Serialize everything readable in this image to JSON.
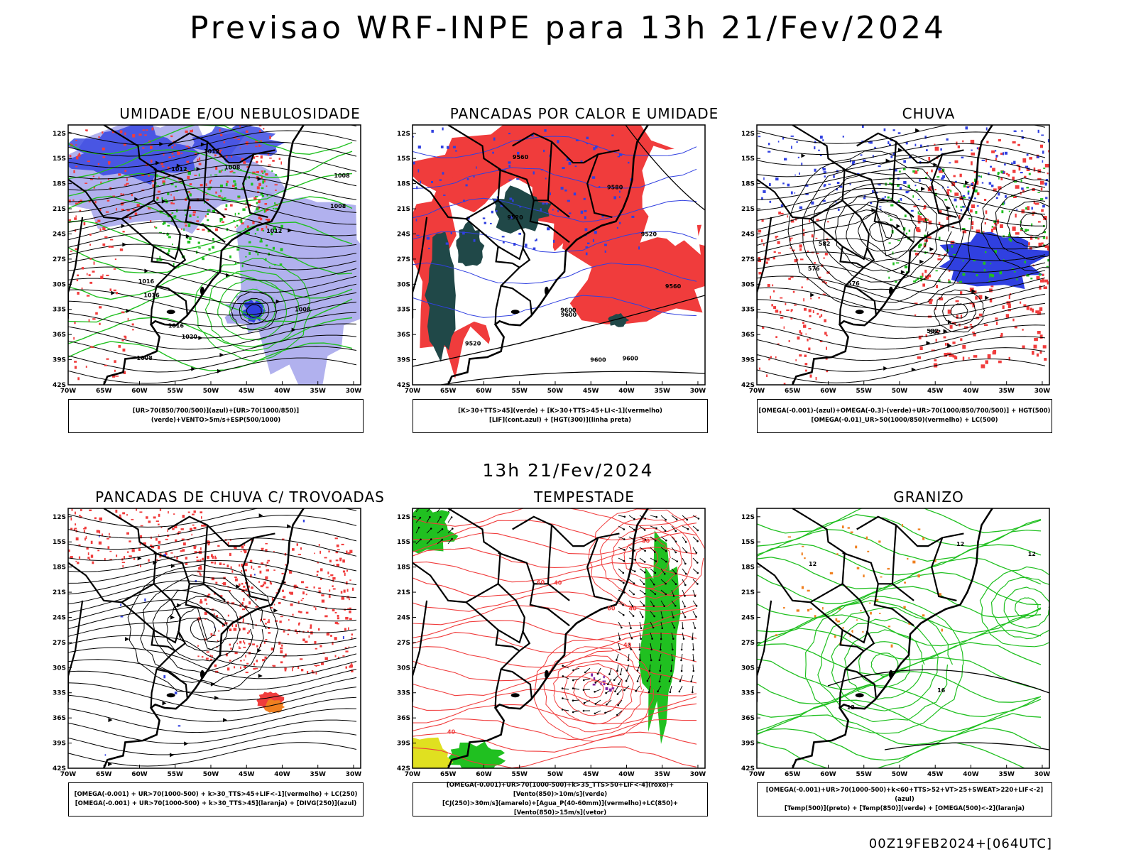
{
  "main_title": "Previsao WRF-INPE  para 13h 21/Fev/2024",
  "mid_title": "13h 21/Fev/2024",
  "footer_stamp": "00Z19FEB2024+[064UTC]",
  "axes": {
    "lat_labels": [
      "12S",
      "15S",
      "18S",
      "21S",
      "24S",
      "27S",
      "30S",
      "33S",
      "36S",
      "39S",
      "42S"
    ],
    "lon_labels": [
      "70W",
      "65W",
      "60W",
      "55W",
      "50W",
      "45W",
      "40W",
      "35W",
      "30W"
    ]
  },
  "colors": {
    "blue": "#3040e0",
    "lilac": "#a8a8ec",
    "green": "#20c020",
    "red": "#f03c3c",
    "orange": "#f08020",
    "darkteal": "#204848",
    "yellow": "#e0e020"
  },
  "panels": [
    {
      "id": "umidade",
      "title": "UMIDADE E/OU NEBULOSIDADE",
      "legend": [
        "[UR>70(850/700/500)](azul)+[UR>70(1000/850)](verde)+VENTO>5m/s+ESP(500/1000)"
      ],
      "contour_labels": [
        "1012",
        "1008",
        "1016",
        "1008",
        "1012",
        "1008",
        "1012",
        "1016",
        "1008",
        "1016",
        "1020",
        "1008"
      ]
    },
    {
      "id": "pancadas-calor",
      "title": "PANCADAS POR CALOR E UMIDADE",
      "legend": [
        "[K>30+TTS>45](verde) + [K>30+TTS>45+LI<-1](vermelho)",
        "[LIF](cont.azul) + [HGT(300)](linha preta)"
      ],
      "contour_labels": [
        "9560",
        "9600",
        "9600",
        "9520",
        "9600",
        "9520",
        "9560",
        "9580",
        "9600",
        "9520"
      ]
    },
    {
      "id": "chuva",
      "title": "CHUVA",
      "legend": [
        "[OMEGA(-0.001)-(azul)+OMEGA(-0.3)-(verde)+UR>70(1000/850/700/500)] + HGT(500)",
        "[OMEGA(-0.01)_UR>50(1000/850)(vermelho) + LC(500)"
      ],
      "contour_labels": [
        "582",
        "576",
        "582",
        "576",
        "582"
      ]
    },
    {
      "id": "pancadas-trovoadas",
      "title": "PANCADAS DE CHUVA C/ TROVOADAS",
      "legend": [
        "[OMEGA(-0.001) + UR>70(1000-500) + k>30_TTS>45+LIF<-1](vermelho) + LC(250)",
        "[OMEGA(-0.001) + UR>70(1000-500) + k>30_TTS>45](laranja) + [DIVG(250)](azul)"
      ],
      "contour_labels": []
    },
    {
      "id": "tempestade",
      "title": "TEMPESTADE",
      "legend": [
        "[OMEGA(-0.001)+UR>70(1000-500)+k>35_TTS>50+LIF<-4](roxo)+[Vento(850)>10m/s](verde)",
        "[CJ(250)>30m/s](amarelo)+[Agua_P(40-60mm)](vermelho)+LC(850)+[Vento(850)>15m/s](vetor)"
      ],
      "contour_labels": [
        "40",
        "40",
        "60",
        "40",
        "50",
        "40",
        "60"
      ]
    },
    {
      "id": "granizo",
      "title": "GRANIZO",
      "legend": [
        "[OMEGA(-0.001)+UR>70(1000-500)+k<60+TTS>52+VT>25+SWEAT>220+LIF<-2](azul)",
        "[Temp(500)](preto) + [Temp(850)](verde) + [OMEGA(500)<-2](laranja)"
      ],
      "contour_labels": [
        "12",
        "12",
        "12",
        "16",
        "12"
      ]
    }
  ]
}
